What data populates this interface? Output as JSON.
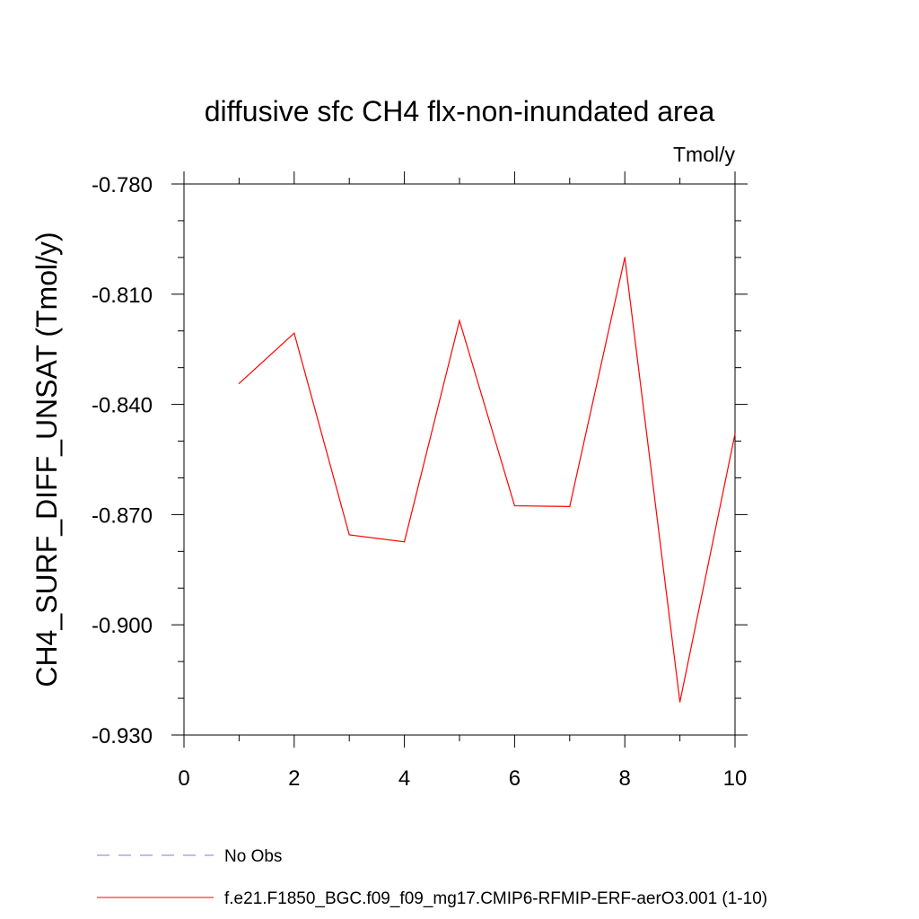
{
  "chart_data": {
    "type": "line",
    "title": "diffusive sfc CH4 flx-non-inundated area",
    "units": "Tmol/y",
    "xlabel": "",
    "ylabel": "CH4_SURF_DIFF_UNSAT  (Tmol/y)",
    "xlim": [
      0,
      10
    ],
    "ylim": [
      -0.93,
      -0.78
    ],
    "x_ticks": [
      0,
      2,
      4,
      6,
      8,
      10
    ],
    "x_tick_labels": [
      "0",
      "2",
      "4",
      "6",
      "8",
      "10"
    ],
    "y_ticks": [
      -0.78,
      -0.81,
      -0.84,
      -0.87,
      -0.9,
      -0.93
    ],
    "y_tick_labels": [
      "-0.780",
      "-0.810",
      "-0.840",
      "-0.870",
      "-0.900",
      "-0.930"
    ],
    "grid": false,
    "legend_position": "bottom",
    "series": [
      {
        "name": "No Obs",
        "color": "#8080c0",
        "dash": "dashed",
        "x": [],
        "y": []
      },
      {
        "name": "f.e21.F1850_BGC.f09_f09_mg17.CMIP6-RFMIP-ERF-aerO3.001 (1-10)",
        "color": "#ff0000",
        "dash": "solid",
        "x": [
          1,
          2,
          3,
          4,
          5,
          6,
          7,
          8,
          9,
          10
        ],
        "y": [
          -0.8343,
          -0.8206,
          -0.8755,
          -0.8774,
          -0.8172,
          -0.8676,
          -0.8678,
          -0.8,
          -0.921,
          -0.848
        ]
      }
    ]
  }
}
